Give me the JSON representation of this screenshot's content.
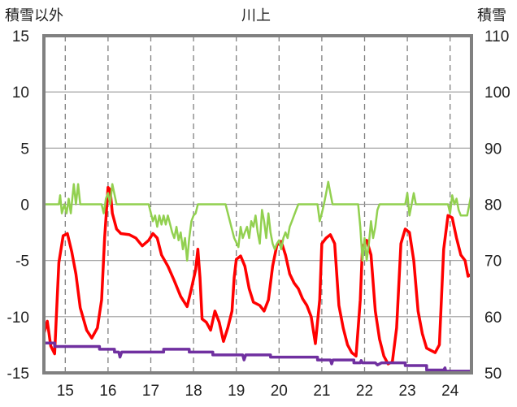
{
  "chart_data": {
    "type": "line",
    "title": "川上",
    "y_left_label": "積雪以外",
    "y_right_label": "積雪",
    "x_ticks": [
      "15",
      "16",
      "17",
      "18",
      "19",
      "20",
      "21",
      "22",
      "23",
      "24"
    ],
    "x_range": [
      14.5,
      24.5
    ],
    "y_left_range": [
      -15,
      15
    ],
    "y_left_ticks": [
      "15",
      "10",
      "5",
      "0",
      "-5",
      "-10",
      "-15"
    ],
    "y_right_range": [
      50,
      110
    ],
    "y_right_ticks": [
      "110",
      "100",
      "90",
      "80",
      "70",
      "60",
      "50"
    ],
    "colors": {
      "red": "#ff0000",
      "green": "#92d050",
      "purple": "#7030a0",
      "frame": "#808080"
    },
    "series": [
      {
        "axis": "left",
        "color": "red",
        "points": [
          [
            14.5,
            -11.5
          ],
          [
            14.58,
            -10.4
          ],
          [
            14.66,
            -12.6
          ],
          [
            14.75,
            -13.3
          ],
          [
            14.85,
            -5.2
          ],
          [
            14.95,
            -2.8
          ],
          [
            15.05,
            -2.6
          ],
          [
            15.15,
            -4.2
          ],
          [
            15.25,
            -6.2
          ],
          [
            15.35,
            -9.2
          ],
          [
            15.5,
            -11.2
          ],
          [
            15.62,
            -11.9
          ],
          [
            15.75,
            -11.0
          ],
          [
            15.85,
            -8.5
          ],
          [
            15.92,
            -3.0
          ],
          [
            16.0,
            1.5
          ],
          [
            16.05,
            1.3
          ],
          [
            16.1,
            -0.8
          ],
          [
            16.2,
            -2.2
          ],
          [
            16.3,
            -2.6
          ],
          [
            16.5,
            -2.7
          ],
          [
            16.65,
            -3.0
          ],
          [
            16.8,
            -3.7
          ],
          [
            16.95,
            -3.2
          ],
          [
            17.05,
            -2.6
          ],
          [
            17.15,
            -3.0
          ],
          [
            17.25,
            -4.5
          ],
          [
            17.4,
            -5.5
          ],
          [
            17.55,
            -6.8
          ],
          [
            17.7,
            -8.2
          ],
          [
            17.85,
            -9.1
          ],
          [
            17.95,
            -7.5
          ],
          [
            18.05,
            -5.8
          ],
          [
            18.1,
            -4.0
          ],
          [
            18.15,
            -6.5
          ],
          [
            18.2,
            -10.2
          ],
          [
            18.3,
            -10.5
          ],
          [
            18.4,
            -11.2
          ],
          [
            18.5,
            -9.5
          ],
          [
            18.6,
            -10.5
          ],
          [
            18.7,
            -12.2
          ],
          [
            18.8,
            -11.0
          ],
          [
            18.9,
            -9.5
          ],
          [
            18.95,
            -6.5
          ],
          [
            19.0,
            -4.9
          ],
          [
            19.1,
            -4.6
          ],
          [
            19.2,
            -5.5
          ],
          [
            19.3,
            -7.5
          ],
          [
            19.4,
            -8.7
          ],
          [
            19.55,
            -9.0
          ],
          [
            19.65,
            -9.5
          ],
          [
            19.75,
            -8.5
          ],
          [
            19.85,
            -5.5
          ],
          [
            19.95,
            -3.6
          ],
          [
            20.05,
            -3.3
          ],
          [
            20.15,
            -4.5
          ],
          [
            20.25,
            -6.2
          ],
          [
            20.35,
            -7.0
          ],
          [
            20.45,
            -7.5
          ],
          [
            20.55,
            -8.4
          ],
          [
            20.65,
            -9.0
          ],
          [
            20.75,
            -10.0
          ],
          [
            20.85,
            -12.4
          ],
          [
            20.95,
            -8.5
          ],
          [
            21.0,
            -3.5
          ],
          [
            21.1,
            -3.0
          ],
          [
            21.2,
            -2.7
          ],
          [
            21.3,
            -3.5
          ],
          [
            21.4,
            -9.0
          ],
          [
            21.5,
            -11.0
          ],
          [
            21.6,
            -12.5
          ],
          [
            21.7,
            -13.2
          ],
          [
            21.8,
            -13.5
          ],
          [
            21.9,
            -8.5
          ],
          [
            21.95,
            -3.8
          ],
          [
            22.05,
            -3.2
          ],
          [
            22.15,
            -4.5
          ],
          [
            22.25,
            -9.5
          ],
          [
            22.35,
            -12.0
          ],
          [
            22.45,
            -13.5
          ],
          [
            22.55,
            -14.2
          ],
          [
            22.65,
            -14.0
          ],
          [
            22.75,
            -11.0
          ],
          [
            22.85,
            -3.5
          ],
          [
            22.95,
            -2.2
          ],
          [
            23.05,
            -2.5
          ],
          [
            23.15,
            -5.0
          ],
          [
            23.25,
            -9.5
          ],
          [
            23.35,
            -11.5
          ],
          [
            23.45,
            -12.8
          ],
          [
            23.55,
            -13.0
          ],
          [
            23.65,
            -13.2
          ],
          [
            23.75,
            -12.5
          ],
          [
            23.85,
            -4.0
          ],
          [
            23.95,
            -1.0
          ],
          [
            24.05,
            -1.2
          ],
          [
            24.15,
            -3.0
          ],
          [
            24.25,
            -4.5
          ],
          [
            24.35,
            -5.0
          ],
          [
            24.42,
            -6.4
          ],
          [
            24.5,
            -6.2
          ]
        ]
      },
      {
        "axis": "left",
        "color": "green",
        "points": [
          [
            14.5,
            0
          ],
          [
            14.85,
            0
          ],
          [
            14.88,
            0.8
          ],
          [
            14.92,
            -0.8
          ],
          [
            14.98,
            0
          ],
          [
            15.03,
            -0.8
          ],
          [
            15.08,
            0.5
          ],
          [
            15.13,
            -0.8
          ],
          [
            15.2,
            1.8
          ],
          [
            15.25,
            0
          ],
          [
            15.3,
            1.8
          ],
          [
            15.35,
            0
          ],
          [
            15.85,
            0
          ],
          [
            15.9,
            -0.8
          ],
          [
            15.95,
            0.5
          ],
          [
            16.0,
            1.0
          ],
          [
            16.05,
            0
          ],
          [
            16.1,
            1.8
          ],
          [
            16.2,
            0
          ],
          [
            16.95,
            0
          ],
          [
            17.05,
            -1.5
          ],
          [
            17.1,
            -1.0
          ],
          [
            17.15,
            -2.0
          ],
          [
            17.2,
            -1.0
          ],
          [
            17.25,
            -1.8
          ],
          [
            17.3,
            -1.0
          ],
          [
            17.35,
            -1.8
          ],
          [
            17.4,
            -1.0
          ],
          [
            17.5,
            -2.5
          ],
          [
            17.55,
            -3.0
          ],
          [
            17.6,
            -2.0
          ],
          [
            17.65,
            -3.2
          ],
          [
            17.7,
            -2.5
          ],
          [
            17.75,
            -4.0
          ],
          [
            17.8,
            -3.0
          ],
          [
            17.85,
            -5.0
          ],
          [
            17.9,
            -3.0
          ],
          [
            17.95,
            -1.5
          ],
          [
            18.0,
            -1.0
          ],
          [
            18.05,
            -0.8
          ],
          [
            18.1,
            0
          ],
          [
            18.75,
            0
          ],
          [
            18.85,
            -1.5
          ],
          [
            18.95,
            -3.0
          ],
          [
            19.05,
            -3.8
          ],
          [
            19.1,
            -2.0
          ],
          [
            19.15,
            -3.0
          ],
          [
            19.2,
            -2.5
          ],
          [
            19.25,
            -2.0
          ],
          [
            19.3,
            -3.0
          ],
          [
            19.35,
            -1.5
          ],
          [
            19.4,
            -2.0
          ],
          [
            19.45,
            -1.0
          ],
          [
            19.5,
            -2.5
          ],
          [
            19.55,
            -3.5
          ],
          [
            19.6,
            -0.5
          ],
          [
            19.65,
            -1.5
          ],
          [
            19.7,
            -3.0
          ],
          [
            19.75,
            -0.8
          ],
          [
            19.8,
            -2.5
          ],
          [
            19.85,
            -3.5
          ],
          [
            19.9,
            -4.0
          ],
          [
            19.95,
            -3.5
          ],
          [
            20.0,
            -3.2
          ],
          [
            20.05,
            -4.0
          ],
          [
            20.1,
            -3.0
          ],
          [
            20.15,
            -2.5
          ],
          [
            20.2,
            -3.0
          ],
          [
            20.25,
            -2.0
          ],
          [
            20.3,
            -1.5
          ],
          [
            20.35,
            -1.0
          ],
          [
            20.4,
            -0.5
          ],
          [
            20.45,
            0
          ],
          [
            20.9,
            0
          ],
          [
            20.95,
            -1.5
          ],
          [
            21.0,
            -0.8
          ],
          [
            21.05,
            0
          ],
          [
            21.1,
            1.0
          ],
          [
            21.15,
            2.0
          ],
          [
            21.2,
            1.0
          ],
          [
            21.25,
            0
          ],
          [
            21.85,
            0
          ],
          [
            21.9,
            -2.0
          ],
          [
            21.95,
            -5.0
          ],
          [
            22.0,
            -3.0
          ],
          [
            22.05,
            -5.0
          ],
          [
            22.1,
            -3.5
          ],
          [
            22.15,
            -1.5
          ],
          [
            22.2,
            -3.0
          ],
          [
            22.25,
            -2.0
          ],
          [
            22.3,
            -0.5
          ],
          [
            22.35,
            0
          ],
          [
            22.95,
            0
          ],
          [
            23.0,
            1.0
          ],
          [
            23.05,
            -1.0
          ],
          [
            23.1,
            0
          ],
          [
            23.15,
            1.0
          ],
          [
            23.2,
            0
          ],
          [
            23.95,
            0
          ],
          [
            24.0,
            -0.8
          ],
          [
            24.05,
            0.8
          ],
          [
            24.1,
            0
          ],
          [
            24.15,
            0.5
          ],
          [
            24.2,
            -0.5
          ],
          [
            24.25,
            -1.0
          ],
          [
            24.4,
            -1.0
          ],
          [
            24.45,
            0
          ],
          [
            24.5,
            1.0
          ]
        ]
      },
      {
        "axis": "right",
        "color": "purple",
        "points": [
          [
            14.5,
            55.3
          ],
          [
            14.75,
            55.3
          ],
          [
            14.75,
            54.7
          ],
          [
            15.8,
            54.7
          ],
          [
            15.8,
            54.2
          ],
          [
            16.15,
            54.2
          ],
          [
            16.15,
            53.7
          ],
          [
            16.25,
            53.7
          ],
          [
            16.28,
            52.8
          ],
          [
            16.32,
            53.7
          ],
          [
            16.9,
            53.7
          ],
          [
            17.3,
            53.7
          ],
          [
            17.3,
            54.2
          ],
          [
            17.9,
            54.2
          ],
          [
            17.9,
            53.7
          ],
          [
            18.45,
            53.7
          ],
          [
            18.45,
            53.2
          ],
          [
            19.15,
            53.2
          ],
          [
            19.18,
            52.3
          ],
          [
            19.22,
            53.2
          ],
          [
            19.8,
            53.2
          ],
          [
            19.8,
            52.8
          ],
          [
            20.9,
            52.8
          ],
          [
            20.9,
            52.3
          ],
          [
            21.2,
            52.3
          ],
          [
            21.23,
            51.6
          ],
          [
            21.26,
            52.3
          ],
          [
            21.75,
            52.3
          ],
          [
            21.75,
            51.8
          ],
          [
            21.9,
            51.8
          ],
          [
            21.92,
            52.2
          ],
          [
            21.95,
            51.8
          ],
          [
            22.25,
            51.8
          ],
          [
            22.3,
            51.4
          ],
          [
            22.4,
            51.8
          ],
          [
            22.95,
            51.8
          ],
          [
            22.95,
            51.3
          ],
          [
            23.45,
            51.3
          ],
          [
            23.45,
            50.5
          ],
          [
            23.85,
            50.5
          ],
          [
            23.88,
            50.9
          ],
          [
            23.9,
            50.3
          ],
          [
            24.5,
            50.3
          ]
        ]
      }
    ]
  }
}
